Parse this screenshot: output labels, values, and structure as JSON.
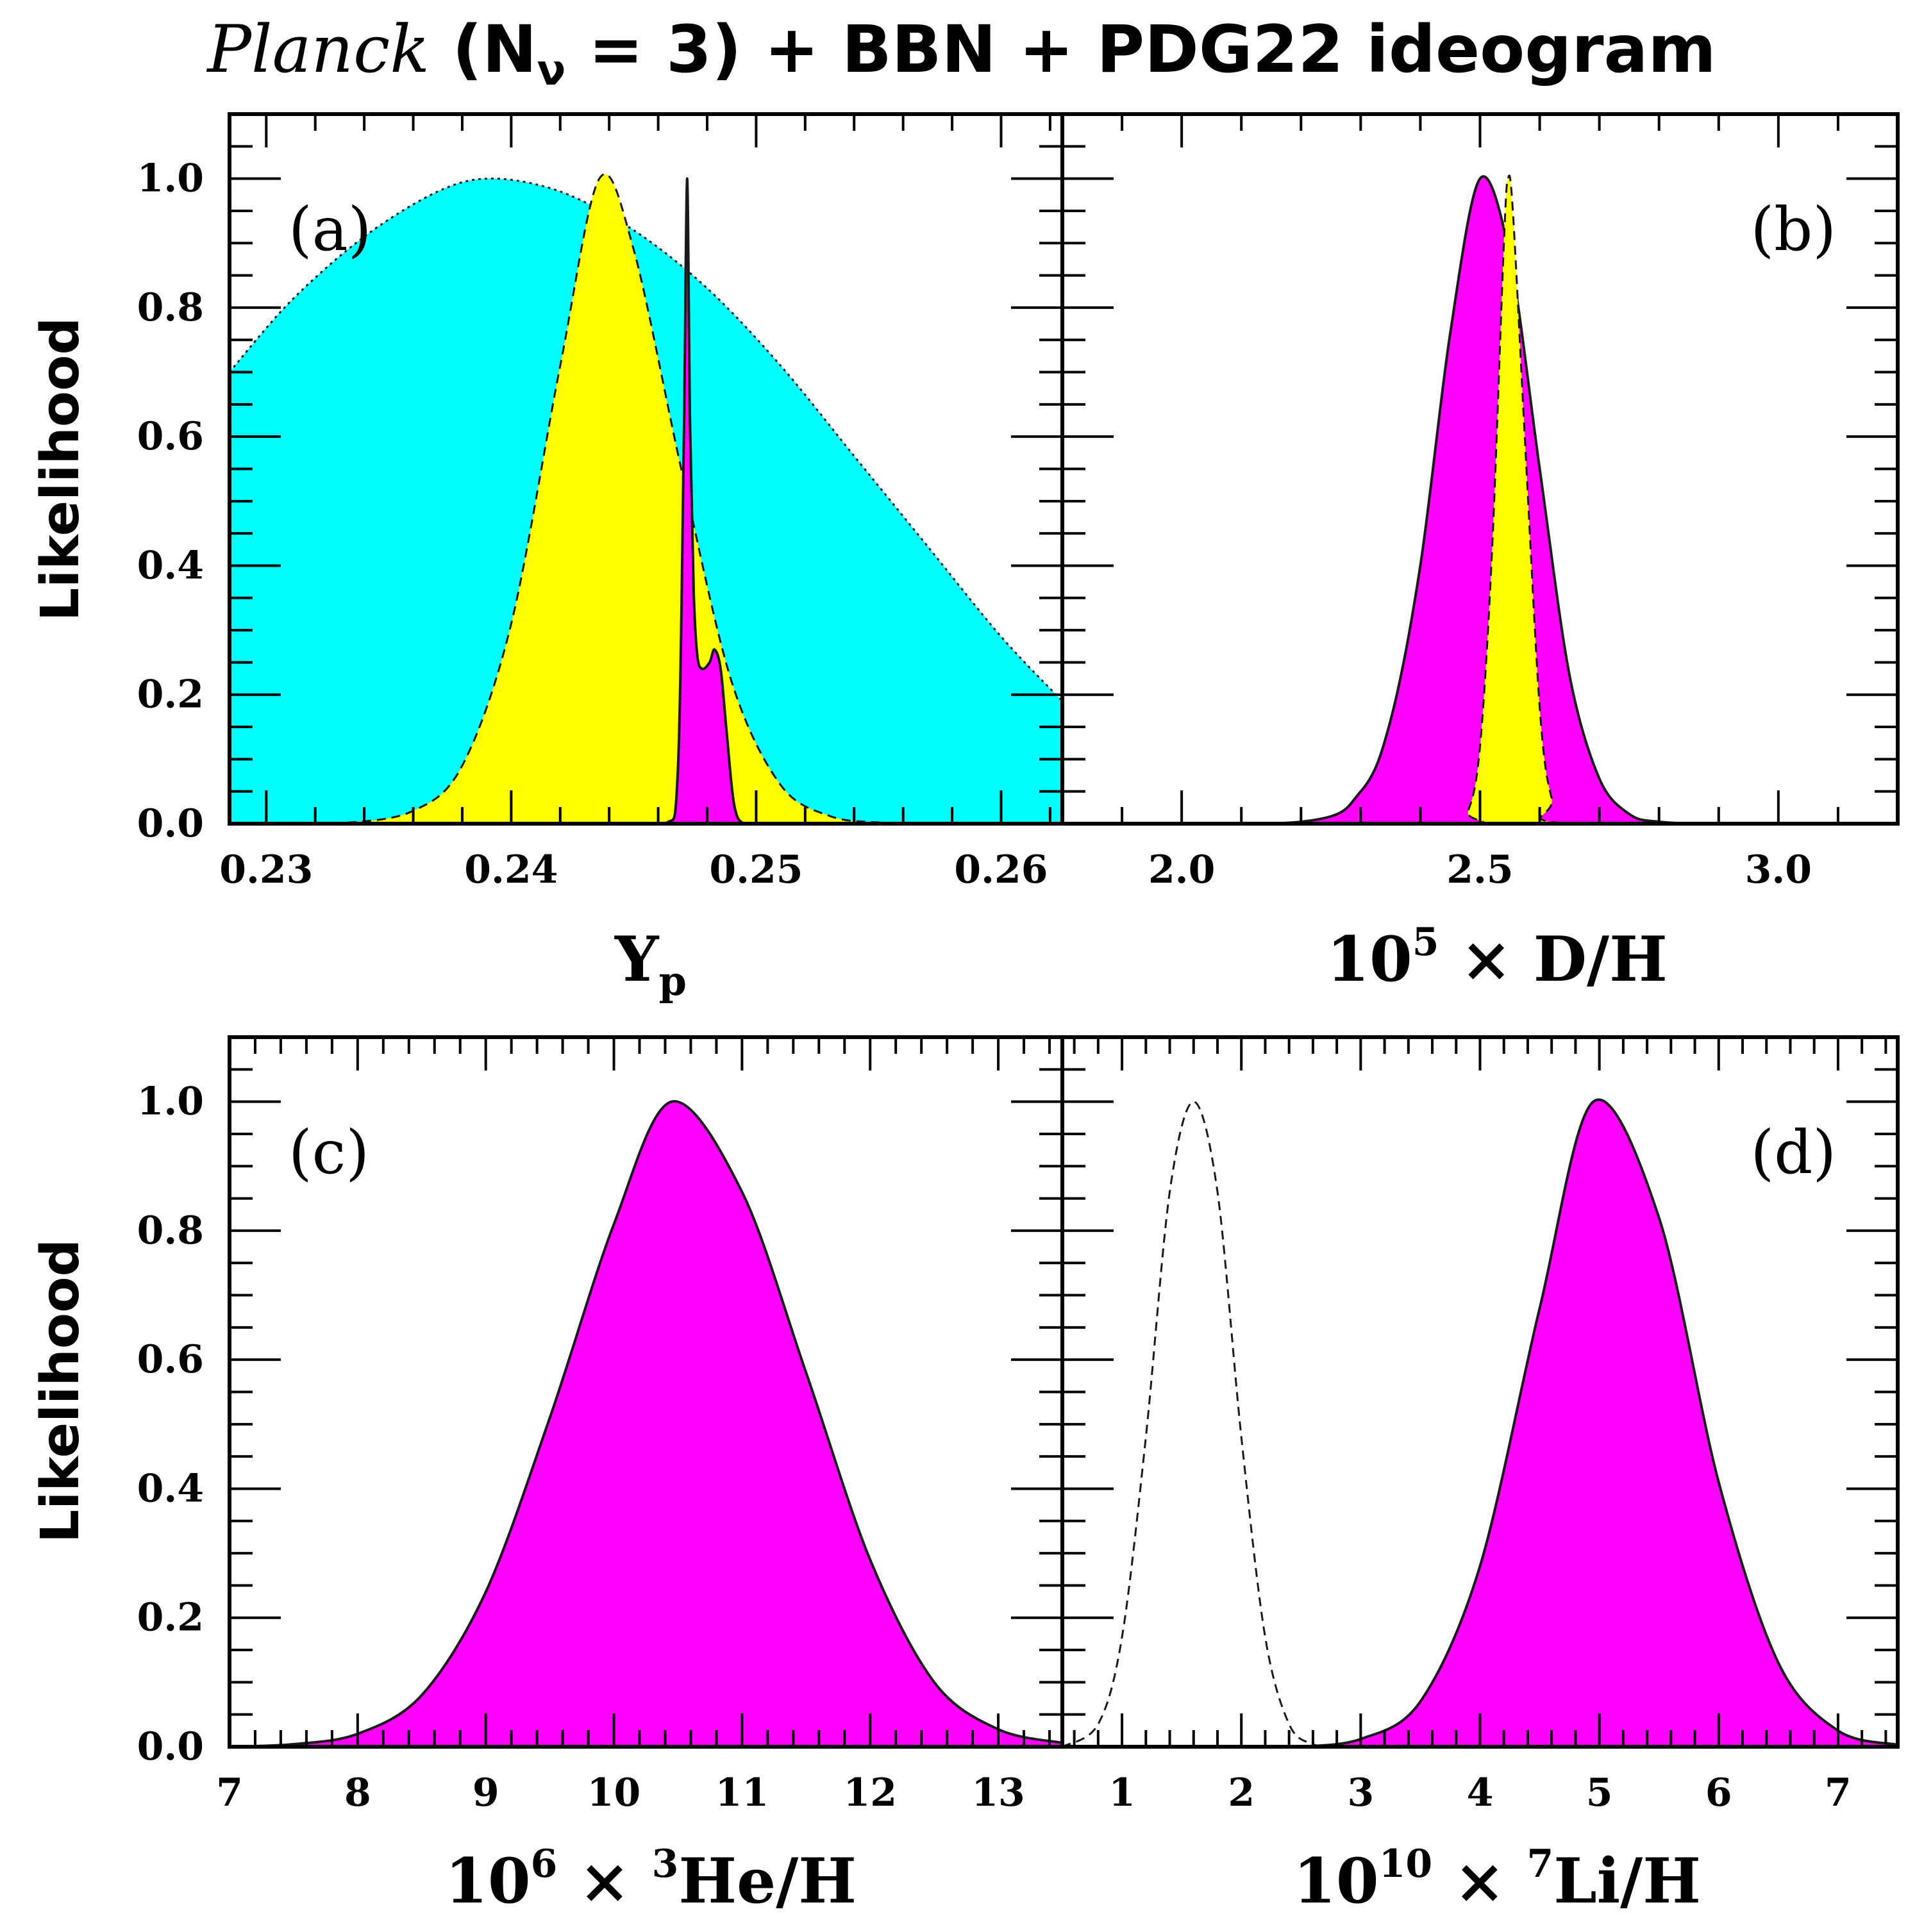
{
  "title": {
    "italic_part": "Planck",
    "rest_prefix": " (N",
    "subscript": "ν",
    "rest_suffix": " = 3) + BBN + PDG22 ideogram"
  },
  "chart_data": [
    {
      "panel": "(a)",
      "type": "area",
      "xlabel": "Yp",
      "ylabel": "Likelihood",
      "xlim": [
        0.2285,
        0.2625
      ],
      "ylim": [
        0,
        1.1
      ],
      "xticks": [
        {
          "value": 0.23,
          "label": "0.23"
        },
        {
          "value": 0.24,
          "label": "0.24"
        },
        {
          "value": 0.25,
          "label": "0.25"
        },
        {
          "value": 0.26,
          "label": "0.26"
        }
      ],
      "yticks": [
        {
          "value": 0.0,
          "label": "0.0"
        },
        {
          "value": 0.2,
          "label": "0.2"
        },
        {
          "value": 0.4,
          "label": "0.4"
        },
        {
          "value": 0.6,
          "label": "0.6"
        },
        {
          "value": 0.8,
          "label": "0.8"
        },
        {
          "value": 1.0,
          "label": "1.0"
        }
      ],
      "series": [
        {
          "fill": "#00ffff",
          "line": "dotted",
          "x": [
            0.2285,
            0.231,
            0.234,
            0.237,
            0.2392,
            0.242,
            0.245,
            0.248,
            0.251,
            0.254,
            0.257,
            0.26,
            0.2625
          ],
          "values": [
            0.7,
            0.81,
            0.91,
            0.98,
            1.0,
            0.98,
            0.92,
            0.83,
            0.71,
            0.57,
            0.43,
            0.29,
            0.19
          ]
        },
        {
          "fill": "#ffff00",
          "line": "dashed",
          "x": [
            0.2285,
            0.233,
            0.236,
            0.238,
            0.24,
            0.242,
            0.2436,
            0.245,
            0.247,
            0.249,
            0.251,
            0.253,
            0.255,
            0.2575,
            0.2625
          ],
          "values": [
            0.0,
            0.001,
            0.02,
            0.09,
            0.31,
            0.71,
            1.0,
            0.89,
            0.54,
            0.22,
            0.06,
            0.012,
            0.002,
            0.0,
            0.0
          ]
        },
        {
          "fill": "#ff00ff",
          "line": "solid",
          "x": [
            0.2445,
            0.2463,
            0.2468,
            0.24705,
            0.24718,
            0.2473,
            0.24745,
            0.2476,
            0.2478,
            0.2481,
            0.2483,
            0.24855,
            0.2488,
            0.2491,
            0.2495,
            0.2505
          ],
          "values": [
            0.0,
            0.0,
            0.08,
            0.6,
            1.0,
            0.62,
            0.36,
            0.26,
            0.24,
            0.25,
            0.27,
            0.24,
            0.14,
            0.03,
            0.0,
            0.0
          ]
        }
      ]
    },
    {
      "panel": "(b)",
      "type": "area",
      "xlabel": "10^5 × D/H",
      "xlim": [
        1.8,
        3.2
      ],
      "ylim": [
        0,
        1.1
      ],
      "xticks": [
        {
          "value": 2.0,
          "label": "2.0"
        },
        {
          "value": 2.5,
          "label": "2.5"
        },
        {
          "value": 3.0,
          "label": "3.0"
        }
      ],
      "series": [
        {
          "fill": "#ff00ff",
          "line": "solid",
          "x": [
            1.8,
            2.2,
            2.3,
            2.35,
            2.4,
            2.45,
            2.5,
            2.55,
            2.6,
            2.65,
            2.7,
            2.75,
            2.8,
            2.9,
            3.2
          ],
          "values": [
            0.0,
            0.003,
            0.05,
            0.16,
            0.4,
            0.76,
            1.0,
            0.88,
            0.55,
            0.23,
            0.07,
            0.015,
            0.003,
            0.0,
            0.0
          ]
        },
        {
          "fill": "#ffff00",
          "line": "dashed",
          "x": [
            1.8,
            2.45,
            2.48,
            2.5,
            2.52,
            2.54,
            2.547,
            2.555,
            2.575,
            2.6,
            2.62,
            2.65,
            3.2
          ],
          "values": [
            0.0,
            0.0,
            0.02,
            0.12,
            0.42,
            0.9,
            1.0,
            0.95,
            0.6,
            0.18,
            0.04,
            0.0,
            0.0
          ]
        }
      ]
    },
    {
      "panel": "(c)",
      "type": "area",
      "xlabel": "10^6 × 3He/H",
      "ylabel": "Likelihood",
      "xlim": [
        7.0,
        13.5
      ],
      "ylim": [
        0,
        1.1
      ],
      "xticks": [
        {
          "value": 7,
          "label": "7"
        },
        {
          "value": 8,
          "label": "8"
        },
        {
          "value": 9,
          "label": "9"
        },
        {
          "value": 10,
          "label": "10"
        },
        {
          "value": 11,
          "label": "11"
        },
        {
          "value": 12,
          "label": "12"
        },
        {
          "value": 13,
          "label": "13"
        }
      ],
      "yticks": [
        {
          "value": 0.0,
          "label": "0.0"
        },
        {
          "value": 0.2,
          "label": "0.2"
        },
        {
          "value": 0.4,
          "label": "0.4"
        },
        {
          "value": 0.6,
          "label": "0.6"
        },
        {
          "value": 0.8,
          "label": "0.8"
        },
        {
          "value": 1.0,
          "label": "1.0"
        }
      ],
      "series": [
        {
          "fill": "#ff00ff",
          "line": "solid",
          "x": [
            7.0,
            7.5,
            8.0,
            8.5,
            9.0,
            9.5,
            10.0,
            10.45,
            11.0,
            11.5,
            12.0,
            12.5,
            13.0,
            13.5
          ],
          "values": [
            0.0,
            0.004,
            0.02,
            0.08,
            0.24,
            0.51,
            0.81,
            1.0,
            0.86,
            0.58,
            0.29,
            0.1,
            0.027,
            0.006
          ]
        }
      ]
    },
    {
      "panel": "(d)",
      "type": "area",
      "xlabel": "10^10 × 7Li/H",
      "xlim": [
        0.5,
        7.5
      ],
      "ylim": [
        0,
        1.1
      ],
      "xticks": [
        {
          "value": 1,
          "label": "1"
        },
        {
          "value": 2,
          "label": "2"
        },
        {
          "value": 3,
          "label": "3"
        },
        {
          "value": 4,
          "label": "4"
        },
        {
          "value": 5,
          "label": "5"
        },
        {
          "value": 6,
          "label": "6"
        },
        {
          "value": 7,
          "label": "7"
        }
      ],
      "series": [
        {
          "fill": "none",
          "line": "dashed",
          "x": [
            0.5,
            0.8,
            1.0,
            1.2,
            1.4,
            1.6,
            1.8,
            2.0,
            2.2,
            2.4,
            2.6,
            2.8
          ],
          "values": [
            0.0,
            0.035,
            0.17,
            0.48,
            0.86,
            1.0,
            0.86,
            0.48,
            0.17,
            0.035,
            0.004,
            0.0
          ]
        },
        {
          "fill": "#ff00ff",
          "line": "solid",
          "x": [
            2.5,
            3.0,
            3.5,
            4.0,
            4.5,
            4.95,
            5.5,
            6.0,
            6.5,
            7.0,
            7.5
          ],
          "values": [
            0.0,
            0.012,
            0.07,
            0.28,
            0.68,
            1.0,
            0.82,
            0.41,
            0.13,
            0.025,
            0.003
          ]
        }
      ]
    }
  ]
}
